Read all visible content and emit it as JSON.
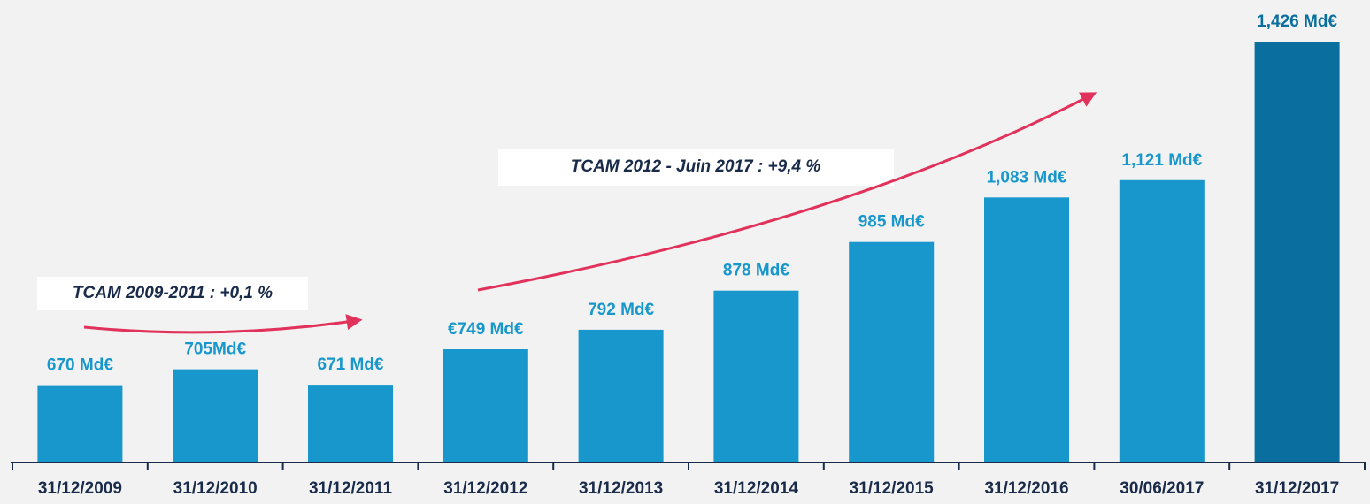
{
  "chart_data": {
    "type": "bar",
    "categories": [
      "31/12/2009",
      "31/12/2010",
      "31/12/2011",
      "31/12/2012",
      "31/12/2013",
      "31/12/2014",
      "31/12/2015",
      "31/12/2016",
      "30/06/2017",
      "31/12/2017"
    ],
    "values": [
      670,
      705,
      671,
      749,
      792,
      878,
      985,
      1083,
      1121,
      1426
    ],
    "value_labels": [
      "670 Md€",
      "705Md€",
      "671 Md€",
      "€749 Md€",
      "792 Md€",
      "878 Md€",
      "985 Md€",
      "1,083 Md€",
      "1,121 Md€",
      "1,426 Md€"
    ],
    "colors": [
      "#1797cb",
      "#1797cb",
      "#1797cb",
      "#1797cb",
      "#1797cb",
      "#1797cb",
      "#1797cb",
      "#1797cb",
      "#1797cb",
      "#0a6f9e"
    ],
    "ylim": [
      500,
      1450
    ],
    "annotations": [
      "TCAM 2009-2011 : +0,1 %",
      "TCAM 2012 - Juin 2017 : +9,4 %"
    ]
  }
}
